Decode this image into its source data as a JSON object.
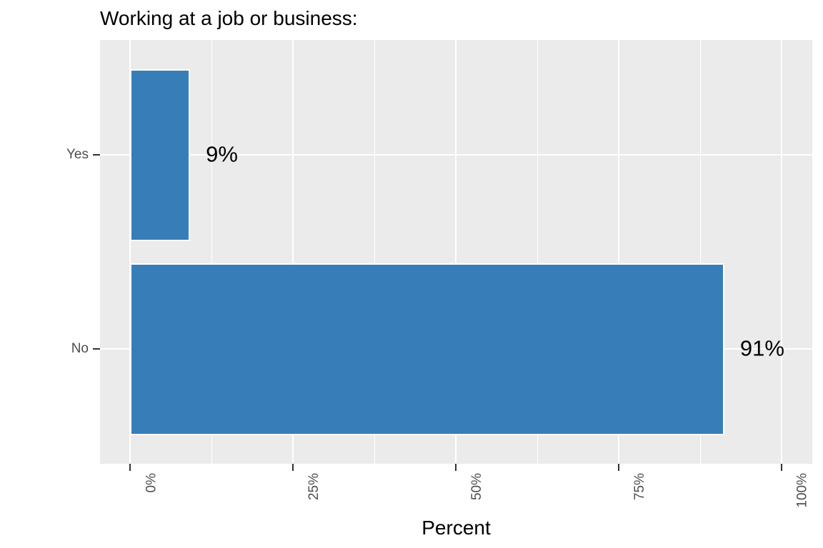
{
  "chart_data": {
    "type": "bar",
    "orientation": "horizontal",
    "title": "Working at a job or business:",
    "xlabel": "Percent",
    "ylabel": "",
    "categories": [
      "Yes",
      "No"
    ],
    "values": [
      9,
      91
    ],
    "value_labels": [
      "9%",
      "91%"
    ],
    "x_ticks": [
      {
        "value": 0,
        "label": "0%"
      },
      {
        "value": 25,
        "label": "25%"
      },
      {
        "value": 50,
        "label": "50%"
      },
      {
        "value": 75,
        "label": "75%"
      },
      {
        "value": 100,
        "label": "100%"
      }
    ],
    "x_minor_ticks": [
      12.5,
      37.5,
      62.5,
      87.5
    ],
    "xlim": [
      0,
      100
    ],
    "grid": true,
    "legend": false,
    "x_tick_labels_rotated_90": true,
    "colors": {
      "bar_fill": "#377eb8",
      "bar_border": "#ffffff",
      "panel_background": "#ebebeb",
      "gridline": "#ffffff",
      "axis_text": "#4d4d4d",
      "tick_mark": "#333333",
      "label_text": "#000000",
      "figure_background": "#ffffff"
    }
  }
}
